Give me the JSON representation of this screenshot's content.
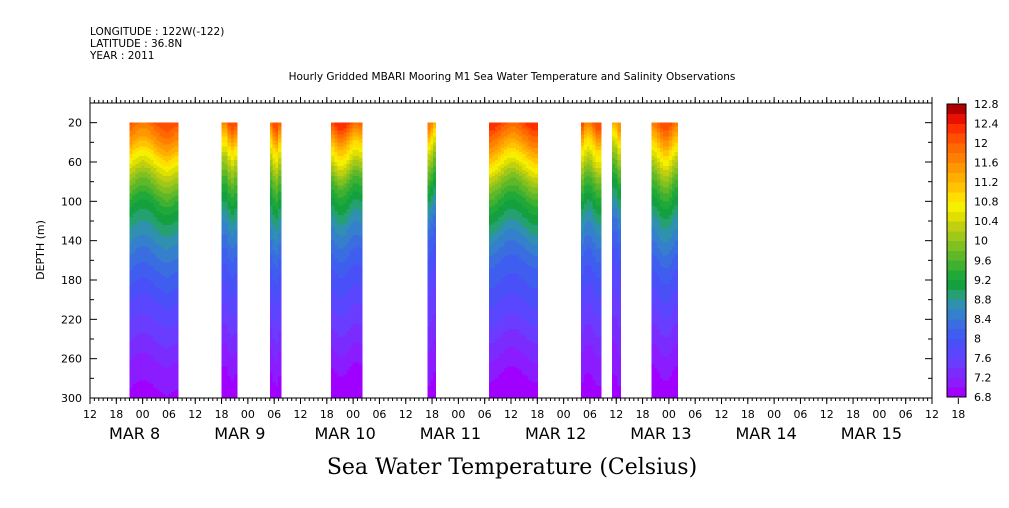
{
  "header": {
    "longitude": "LONGITUDE : 122W(-122)",
    "latitude": "LATITUDE : 36.8N",
    "year": "YEAR : 2011"
  },
  "chart_data": {
    "type": "heatmap",
    "title": "Hourly Gridded MBARI Mooring M1 Sea Water Temperature and Salinity Observations",
    "xlabel": "Sea Water Temperature (Celsius)",
    "ylabel": "DEPTH (m)",
    "colorbar_label": "",
    "x_units": "hours since MAR 8 00:00, 2011",
    "xlim": [
      -12,
      180
    ],
    "ylim": [
      300,
      0
    ],
    "y_axis_reversed": true,
    "y_ticks": [
      20,
      60,
      100,
      140,
      180,
      220,
      260,
      300
    ],
    "x_hour_tick_labels": [
      "12",
      "18",
      "00",
      "06",
      "12",
      "18",
      "00",
      "06",
      "12",
      "18",
      "00",
      "06",
      "12",
      "18",
      "00",
      "06",
      "12",
      "18",
      "00",
      "06",
      "12",
      "18",
      "00",
      "06",
      "12",
      "18",
      "00",
      "06",
      "12",
      "18",
      "00",
      "06",
      "12",
      "18"
    ],
    "x_hour_ticks_start": -12,
    "x_hour_ticks_step": 6,
    "x_day_labels": [
      {
        "label": "MAR  8",
        "x_day": 0
      },
      {
        "label": "MAR  9",
        "x_day": 1
      },
      {
        "label": "MAR 10",
        "x_day": 2
      },
      {
        "label": "MAR 11",
        "x_day": 3
      },
      {
        "label": "MAR 12",
        "x_day": 4
      },
      {
        "label": "MAR 13",
        "x_day": 5
      },
      {
        "label": "MAR 14",
        "x_day": 6
      },
      {
        "label": "MAR 15",
        "x_day": 7
      }
    ],
    "colorbar": {
      "levels": [
        6.8,
        7.0,
        7.2,
        7.4,
        7.6,
        7.8,
        8.0,
        8.2,
        8.4,
        8.6,
        8.8,
        9.0,
        9.2,
        9.4,
        9.6,
        9.8,
        10.0,
        10.2,
        10.4,
        10.6,
        10.8,
        11.0,
        11.2,
        11.4,
        11.6,
        11.8,
        12.0,
        12.2,
        12.4,
        12.6,
        12.8
      ],
      "labels": [
        "6.8",
        "7.2",
        "7.6",
        "8",
        "8.4",
        "8.8",
        "9.2",
        "9.6",
        "10",
        "10.4",
        "10.8",
        "11.2",
        "11.6",
        "12",
        "12.4",
        "12.8"
      ],
      "colors": [
        "#a000ff",
        "#8a1cff",
        "#7a2cff",
        "#6a3cff",
        "#5a46ff",
        "#4a50f8",
        "#3f5ef0",
        "#3a6ee0",
        "#3580cc",
        "#2f90b0",
        "#25a070",
        "#15a040",
        "#20a838",
        "#40b030",
        "#60b828",
        "#80c020",
        "#a0c818",
        "#c0d010",
        "#e0e000",
        "#f5ef00",
        "#ffde00",
        "#ffc400",
        "#ffae00",
        "#ff9800",
        "#ff8000",
        "#ff6a00",
        "#ff5000",
        "#ff3000",
        "#e81000",
        "#b00000"
      ]
    },
    "segments": [
      {
        "start": -3,
        "end": 8,
        "profile": [
          12.0,
          11.4,
          10.6,
          9.9,
          9.3,
          8.9,
          8.6,
          8.3,
          8.05,
          7.8,
          7.6,
          7.4,
          7.2,
          7.05
        ]
      },
      {
        "start": 18,
        "end": 21.5,
        "profile": [
          12.0,
          11.0,
          10.2,
          9.6,
          9.1,
          8.7,
          8.4,
          8.1,
          7.9,
          7.7,
          7.5,
          7.3,
          7.1,
          6.95
        ]
      },
      {
        "start": 29,
        "end": 31.5,
        "profile": [
          12.1,
          11.1,
          10.3,
          9.7,
          9.2,
          8.8,
          8.5,
          8.2,
          7.95,
          7.75,
          7.55,
          7.35,
          7.15,
          7.0
        ]
      },
      {
        "start": 43,
        "end": 50,
        "profile": [
          12.2,
          11.2,
          10.4,
          9.6,
          9.1,
          8.7,
          8.4,
          8.1,
          7.9,
          7.7,
          7.5,
          7.3,
          7.1,
          6.9
        ]
      },
      {
        "start": 65,
        "end": 66.8,
        "profile": [
          11.6,
          10.6,
          9.9,
          9.3,
          8.8,
          8.4,
          8.1,
          7.9,
          7.7,
          7.55,
          7.4,
          7.25,
          7.1,
          7.0
        ]
      },
      {
        "start": 79,
        "end": 90,
        "profile": [
          12.2,
          11.5,
          10.7,
          9.9,
          9.3,
          8.9,
          8.5,
          8.2,
          8.0,
          7.8,
          7.6,
          7.35,
          7.15,
          6.95
        ]
      },
      {
        "start": 100,
        "end": 104.5,
        "profile": [
          12.0,
          11.0,
          10.3,
          9.6,
          9.1,
          8.7,
          8.4,
          8.1,
          7.9,
          7.7,
          7.5,
          7.3,
          7.1,
          7.0
        ]
      },
      {
        "start": 107,
        "end": 109,
        "profile": [
          11.5,
          10.5,
          9.8,
          9.2,
          8.8,
          8.4,
          8.1,
          7.9,
          7.7,
          7.55,
          7.4,
          7.25,
          7.1,
          7.0
        ]
      },
      {
        "start": 116,
        "end": 122,
        "profile": [
          12.0,
          11.2,
          10.4,
          9.7,
          9.2,
          8.8,
          8.5,
          8.2,
          7.95,
          7.75,
          7.5,
          7.3,
          7.1,
          6.95
        ]
      }
    ],
    "profile_depths": [
      20,
      40,
      60,
      80,
      100,
      120,
      140,
      160,
      180,
      200,
      220,
      240,
      260,
      280
    ]
  }
}
